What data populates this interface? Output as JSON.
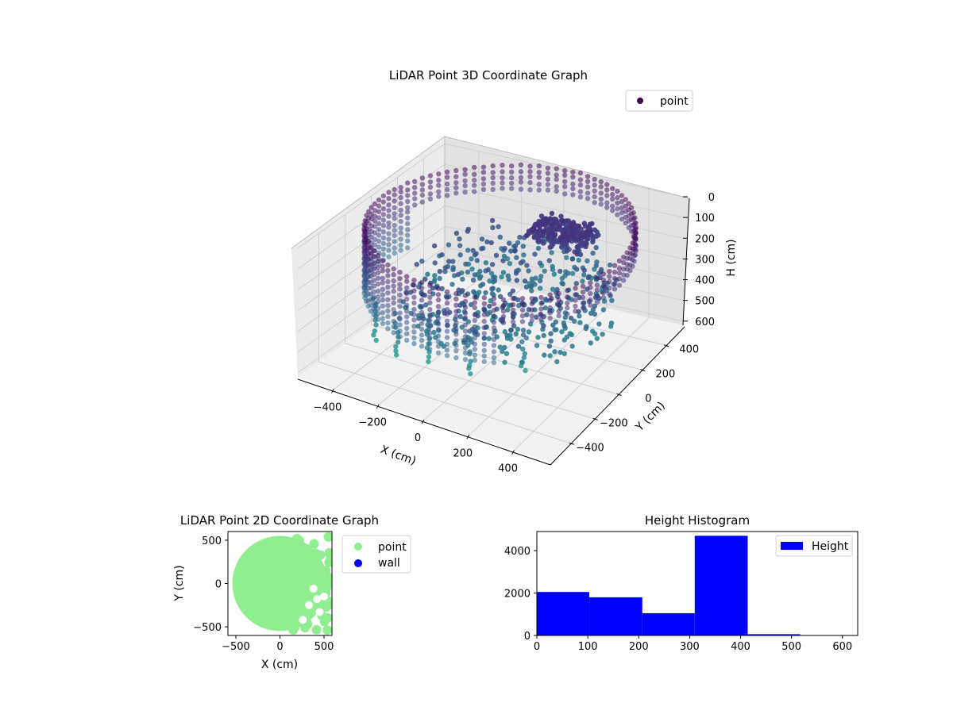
{
  "chart_data": [
    {
      "type": "scatter",
      "title": "LiDAR Point 3D Coordinate Graph",
      "xlabel": "X (cm)",
      "ylabel": "Y (cm)",
      "zlabel": "H (cm)",
      "xlim": [
        -560,
        560
      ],
      "ylim": [
        -560,
        560
      ],
      "zlim": [
        620,
        0
      ],
      "x_ticks": [
        -400,
        -200,
        0,
        200,
        400
      ],
      "y_ticks": [
        -400,
        -200,
        0,
        200,
        400
      ],
      "z_ticks": [
        0,
        100,
        200,
        300,
        400,
        500,
        600
      ],
      "legend": [
        "point"
      ],
      "legend_position": "top-right",
      "grid": true,
      "colormap": "viridis",
      "series": [
        {
          "name": "point",
          "color": "#440154",
          "description_values": {
            "ring_radius": 540,
            "height_levels": [
              80,
              160,
              240,
              320,
              400,
              500
            ],
            "cluster_center": [
              120,
              350,
              130
            ]
          }
        }
      ]
    },
    {
      "type": "scatter",
      "title": "LiDAR Point 2D Coordinate Graph",
      "xlabel": "X (cm)",
      "ylabel": "Y (cm)",
      "xlim": [
        -590,
        590
      ],
      "ylim": [
        -600,
        600
      ],
      "x_ticks": [
        -500,
        0,
        500
      ],
      "y_ticks": [
        -500,
        0,
        500
      ],
      "legend": [
        "point",
        "wall"
      ],
      "legend_position": "outside-right",
      "series": [
        {
          "name": "point",
          "color": "#90ee90",
          "disc_radius": 540
        },
        {
          "name": "wall",
          "color": "#0000ff"
        }
      ]
    },
    {
      "type": "bar",
      "title": "Height Histogram",
      "xlim": [
        0,
        630
      ],
      "ylim": [
        0,
        4900
      ],
      "x_ticks": [
        0,
        100,
        200,
        300,
        400,
        500,
        600
      ],
      "y_ticks": [
        0,
        2000,
        4000
      ],
      "legend": [
        "Height"
      ],
      "legend_position": "top-right",
      "color": "#0000ff",
      "bin_edges": [
        0,
        103,
        207,
        310,
        414,
        517,
        620
      ],
      "values": [
        2050,
        1800,
        1050,
        4700,
        60,
        0
      ],
      "series": [
        {
          "name": "Height"
        }
      ]
    }
  ]
}
